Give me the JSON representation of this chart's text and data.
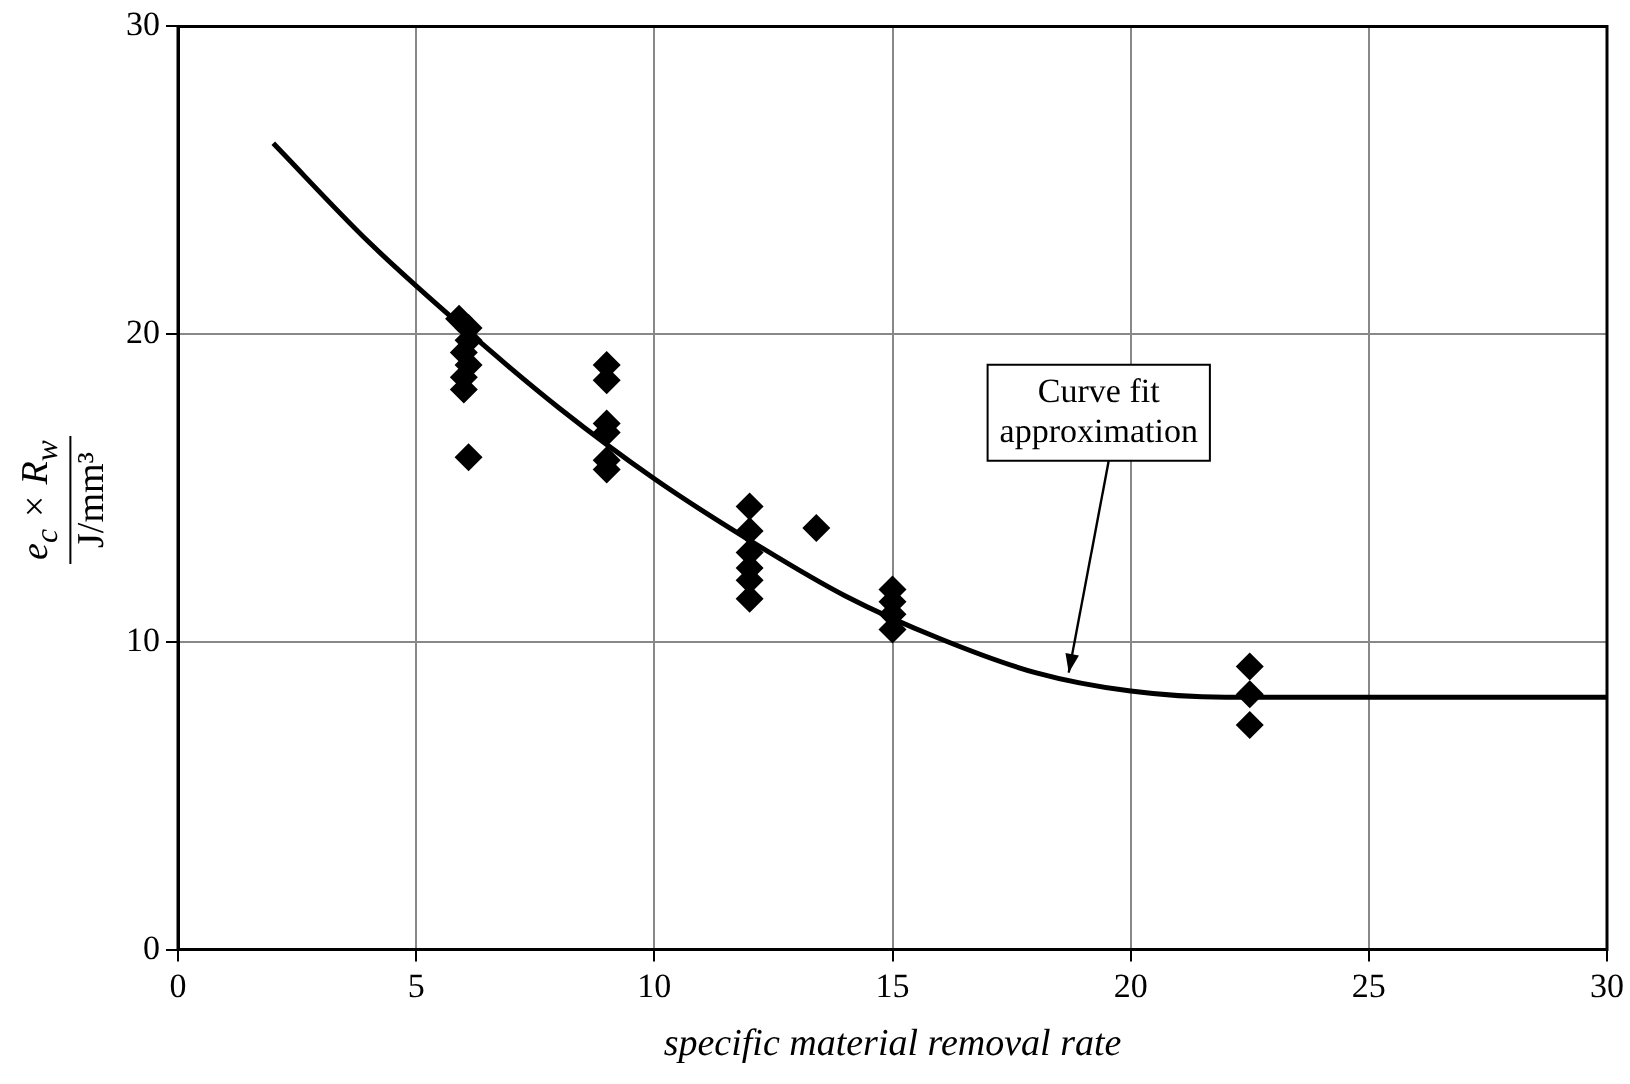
{
  "chart_data": {
    "type": "scatter",
    "xlabel": "specific material removal rate",
    "ylabel": "e$_{c}$ × R$_{w}$\nJ/mm³",
    "xlim": [
      0,
      30
    ],
    "xticks": [
      0,
      5,
      10,
      15,
      20,
      25,
      30
    ],
    "ylim": [
      0,
      30
    ],
    "yticks": [
      0,
      10,
      20,
      30
    ],
    "grid": true,
    "legend": false,
    "marker": "diamond",
    "series": [
      {
        "color": "#000000",
        "x": [
          5.9,
          6.1,
          6.1,
          6.0,
          6.1,
          6.0,
          6.0,
          6.1,
          9,
          9,
          9,
          9,
          9,
          9,
          12,
          12,
          12,
          12,
          12,
          12,
          13.4,
          15,
          15,
          15,
          15,
          22.5,
          22.5,
          22.5
        ],
        "values": [
          20.5,
          20.2,
          19.8,
          19.4,
          19.0,
          18.6,
          18.2,
          16.0,
          19.0,
          18.5,
          17.1,
          16.8,
          15.9,
          15.6,
          14.4,
          13.6,
          12.9,
          12.4,
          12.0,
          11.4,
          13.7,
          11.7,
          11.3,
          10.9,
          10.4,
          9.2,
          8.3,
          7.3
        ]
      },
      {
        "type": "line",
        "color": "#000000",
        "marker": "none",
        "x": [
          2,
          4,
          6,
          8,
          10,
          12,
          14,
          16,
          18,
          20,
          22,
          30
        ],
        "values": [
          26.2,
          23.0,
          20.2,
          17.6,
          15.3,
          13.3,
          11.5,
          10.1,
          9.0,
          8.4,
          8.2,
          8.2
        ]
      }
    ],
    "annotations": [
      {
        "text": "Curve fit\napproximation",
        "x": 18.7,
        "y": 9.0
      }
    ]
  }
}
